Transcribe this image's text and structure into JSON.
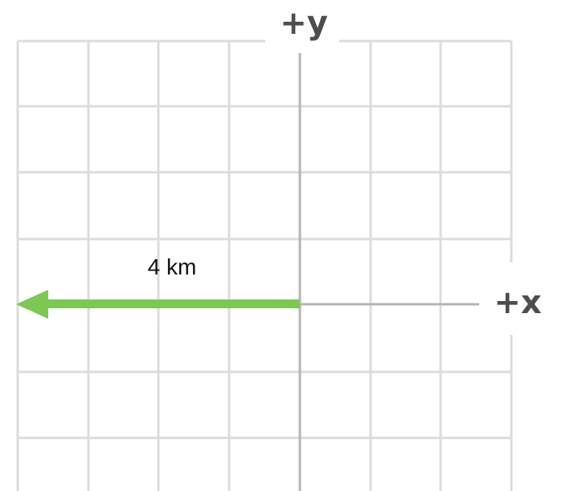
{
  "axes": {
    "y_label": "+y",
    "x_label": "+x"
  },
  "vector": {
    "magnitude_label": "4 km",
    "direction": "-x",
    "length_cells": 4,
    "color": "#7dc855"
  },
  "grid": {
    "color": "#dcdcdc",
    "axis_color": "#b5b5b5"
  }
}
